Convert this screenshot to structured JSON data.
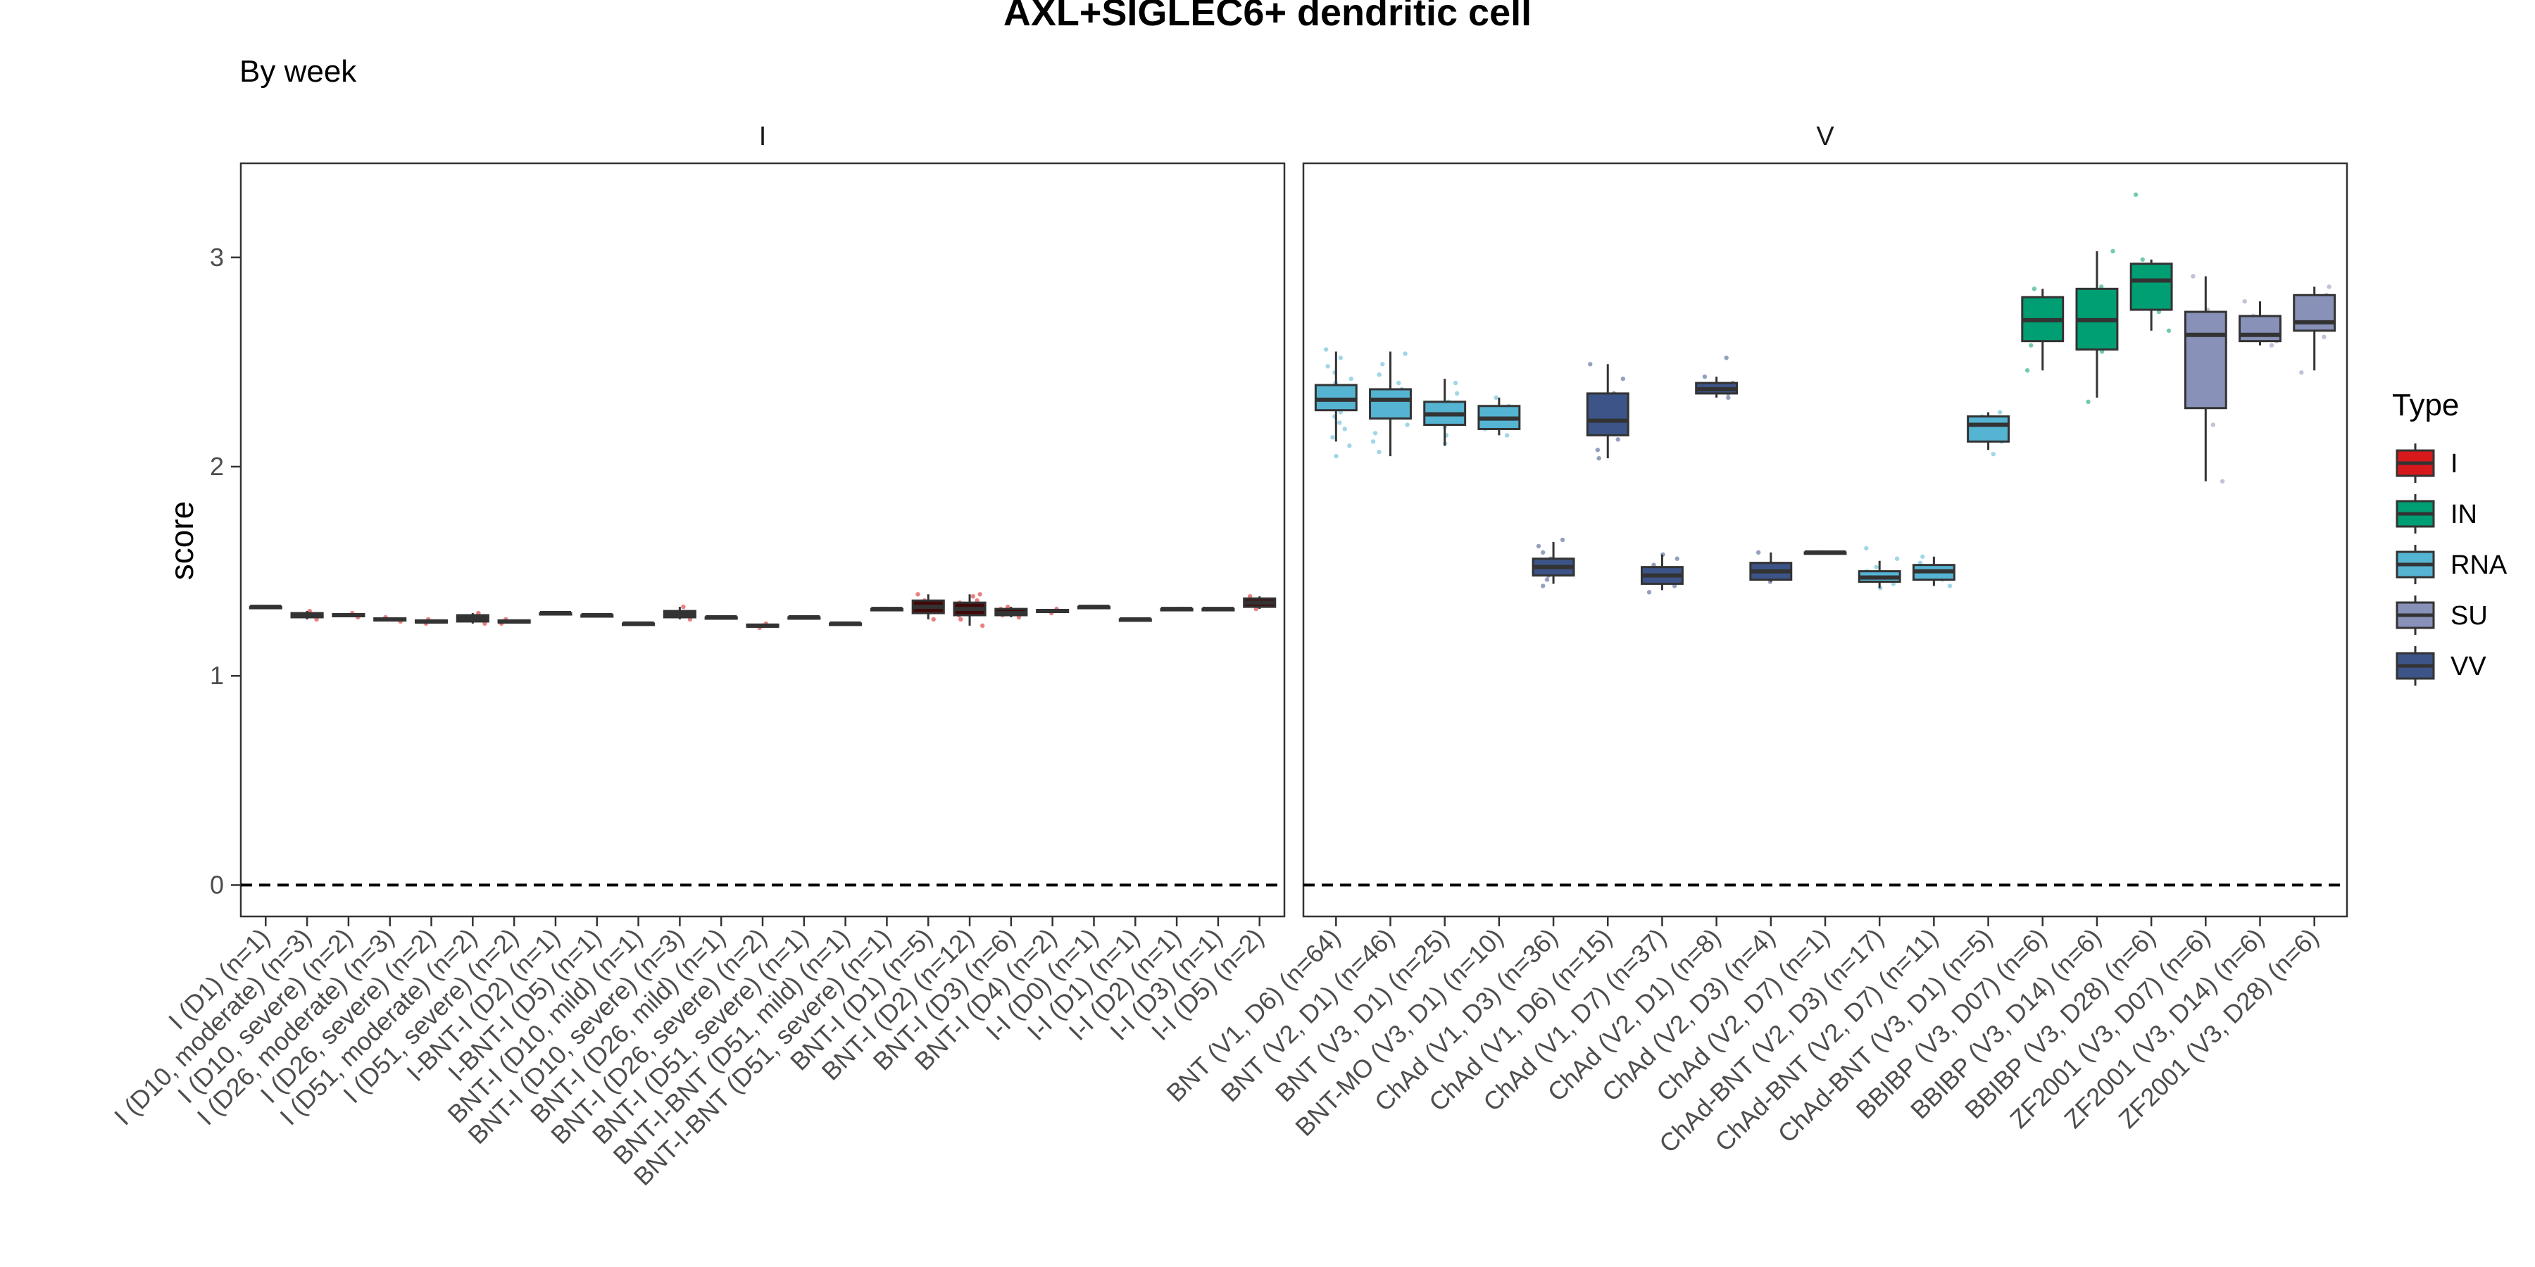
{
  "chart_data": {
    "type": "boxplot",
    "title": "AXL+SIGLEC6+ dendritic cell",
    "subtitle": "By week",
    "ylabel": "score",
    "xlabel": "",
    "ylim": [
      -0.15,
      3.45
    ],
    "yticks": [
      0,
      1,
      2,
      3
    ],
    "reference_line": 0,
    "grid": false,
    "legend": {
      "title": "Type",
      "position": "right",
      "entries": [
        {
          "name": "I",
          "color": "#d7191c"
        },
        {
          "name": "IN",
          "color": "#009e73"
        },
        {
          "name": "RNA",
          "color": "#56b4d3"
        },
        {
          "name": "SU",
          "color": "#8891b8"
        },
        {
          "name": "VV",
          "color": "#3c5488"
        }
      ]
    },
    "panels": [
      {
        "strip": "I",
        "boxes": [
          {
            "label": "I (D1) (n=1)",
            "type": "I",
            "min": 1.33,
            "q1": 1.33,
            "median": 1.33,
            "q3": 1.33,
            "max": 1.33,
            "points": [
              1.33
            ]
          },
          {
            "label": "I (D10, moderate) (n=3)",
            "type": "I",
            "min": 1.27,
            "q1": 1.28,
            "median": 1.29,
            "q3": 1.3,
            "max": 1.31,
            "points": [
              1.27,
              1.29,
              1.31
            ]
          },
          {
            "label": "I (D10, severe) (n=2)",
            "type": "I",
            "min": 1.28,
            "q1": 1.285,
            "median": 1.29,
            "q3": 1.295,
            "max": 1.3,
            "points": [
              1.28,
              1.3
            ]
          },
          {
            "label": "I (D26, moderate) (n=3)",
            "type": "I",
            "min": 1.26,
            "q1": 1.265,
            "median": 1.27,
            "q3": 1.275,
            "max": 1.28,
            "points": [
              1.26,
              1.27,
              1.28
            ]
          },
          {
            "label": "I (D26, severe) (n=2)",
            "type": "I",
            "min": 1.25,
            "q1": 1.255,
            "median": 1.26,
            "q3": 1.265,
            "max": 1.27,
            "points": [
              1.25,
              1.27
            ]
          },
          {
            "label": "I (D51, moderate) (n=2)",
            "type": "I",
            "min": 1.25,
            "q1": 1.26,
            "median": 1.275,
            "q3": 1.29,
            "max": 1.3,
            "points": [
              1.25,
              1.3
            ]
          },
          {
            "label": "I (D51, severe) (n=2)",
            "type": "I",
            "min": 1.25,
            "q1": 1.255,
            "median": 1.26,
            "q3": 1.265,
            "max": 1.27,
            "points": [
              1.25,
              1.27
            ]
          },
          {
            "label": "I-BNT-I (D2) (n=1)",
            "type": "I",
            "min": 1.3,
            "q1": 1.3,
            "median": 1.3,
            "q3": 1.3,
            "max": 1.3,
            "points": [
              1.3
            ]
          },
          {
            "label": "I-BNT-I (D5) (n=1)",
            "type": "I",
            "min": 1.29,
            "q1": 1.29,
            "median": 1.29,
            "q3": 1.29,
            "max": 1.29,
            "points": [
              1.29
            ]
          },
          {
            "label": "BNT-I (D10, mild) (n=1)",
            "type": "I",
            "min": 1.25,
            "q1": 1.25,
            "median": 1.25,
            "q3": 1.25,
            "max": 1.25,
            "points": [
              1.25
            ]
          },
          {
            "label": "BNT-I (D10, severe) (n=3)",
            "type": "I",
            "min": 1.27,
            "q1": 1.28,
            "median": 1.295,
            "q3": 1.31,
            "max": 1.33,
            "points": [
              1.27,
              1.3,
              1.33
            ]
          },
          {
            "label": "BNT-I (D26, mild) (n=1)",
            "type": "I",
            "min": 1.28,
            "q1": 1.28,
            "median": 1.28,
            "q3": 1.28,
            "max": 1.28,
            "points": [
              1.28
            ]
          },
          {
            "label": "BNT-I (D26, severe) (n=2)",
            "type": "I",
            "min": 1.23,
            "q1": 1.235,
            "median": 1.24,
            "q3": 1.245,
            "max": 1.25,
            "points": [
              1.23,
              1.25
            ]
          },
          {
            "label": "BNT-I (D51, severe) (n=1)",
            "type": "I",
            "min": 1.28,
            "q1": 1.28,
            "median": 1.28,
            "q3": 1.28,
            "max": 1.28,
            "points": [
              1.28
            ]
          },
          {
            "label": "BNT-I-BNT (D51, mild) (n=1)",
            "type": "I",
            "min": 1.25,
            "q1": 1.25,
            "median": 1.25,
            "q3": 1.25,
            "max": 1.25,
            "points": [
              1.25
            ]
          },
          {
            "label": "BNT-I-BNT (D51, severe) (n=1)",
            "type": "I",
            "min": 1.32,
            "q1": 1.32,
            "median": 1.32,
            "q3": 1.32,
            "max": 1.32,
            "points": [
              1.32
            ]
          },
          {
            "label": "BNT-I (D1) (n=5)",
            "type": "I",
            "min": 1.27,
            "q1": 1.3,
            "median": 1.33,
            "q3": 1.36,
            "max": 1.39,
            "points": [
              1.27,
              1.31,
              1.33,
              1.36,
              1.39
            ]
          },
          {
            "label": "BNT-I (D2) (n=12)",
            "type": "I",
            "min": 1.24,
            "q1": 1.29,
            "median": 1.32,
            "q3": 1.35,
            "max": 1.39,
            "points": [
              1.24,
              1.27,
              1.29,
              1.3,
              1.31,
              1.32,
              1.33,
              1.34,
              1.35,
              1.36,
              1.38,
              1.39
            ]
          },
          {
            "label": "BNT-I (D3) (n=6)",
            "type": "I",
            "min": 1.28,
            "q1": 1.29,
            "median": 1.3,
            "q3": 1.32,
            "max": 1.33,
            "points": [
              1.28,
              1.29,
              1.3,
              1.31,
              1.32,
              1.33
            ]
          },
          {
            "label": "BNT-I (D4) (n=2)",
            "type": "I",
            "min": 1.3,
            "q1": 1.305,
            "median": 1.31,
            "q3": 1.315,
            "max": 1.32,
            "points": [
              1.3,
              1.32
            ]
          },
          {
            "label": "I-I (D0) (n=1)",
            "type": "I",
            "min": 1.33,
            "q1": 1.33,
            "median": 1.33,
            "q3": 1.33,
            "max": 1.33,
            "points": [
              1.33
            ]
          },
          {
            "label": "I-I (D1) (n=1)",
            "type": "I",
            "min": 1.27,
            "q1": 1.27,
            "median": 1.27,
            "q3": 1.27,
            "max": 1.27,
            "points": [
              1.27
            ]
          },
          {
            "label": "I-I (D2) (n=1)",
            "type": "I",
            "min": 1.32,
            "q1": 1.32,
            "median": 1.32,
            "q3": 1.32,
            "max": 1.32,
            "points": [
              1.32
            ]
          },
          {
            "label": "I-I (D3) (n=1)",
            "type": "I",
            "min": 1.32,
            "q1": 1.32,
            "median": 1.32,
            "q3": 1.32,
            "max": 1.32,
            "points": [
              1.32
            ]
          },
          {
            "label": "I-I (D5) (n=2)",
            "type": "I",
            "min": 1.32,
            "q1": 1.33,
            "median": 1.35,
            "q3": 1.37,
            "max": 1.38,
            "points": [
              1.32,
              1.38
            ]
          }
        ]
      },
      {
        "strip": "V",
        "boxes": [
          {
            "label": "BNT (V1, D6) (n=64)",
            "type": "RNA",
            "min": 2.12,
            "q1": 2.27,
            "median": 2.32,
            "q3": 2.39,
            "max": 2.55,
            "points": [
              2.05,
              2.1,
              2.14,
              2.18,
              2.21,
              2.24,
              2.26,
              2.28,
              2.29,
              2.3,
              2.31,
              2.32,
              2.33,
              2.34,
              2.35,
              2.36,
              2.38,
              2.4,
              2.42,
              2.45,
              2.48,
              2.52,
              2.56
            ]
          },
          {
            "label": "BNT (V2, D1) (n=46)",
            "type": "RNA",
            "min": 2.05,
            "q1": 2.23,
            "median": 2.32,
            "q3": 2.37,
            "max": 2.55,
            "points": [
              2.07,
              2.12,
              2.16,
              2.2,
              2.24,
              2.27,
              2.29,
              2.31,
              2.33,
              2.35,
              2.37,
              2.4,
              2.44,
              2.49,
              2.54
            ]
          },
          {
            "label": "BNT (V3, D1) (n=25)",
            "type": "RNA",
            "min": 2.1,
            "q1": 2.2,
            "median": 2.25,
            "q3": 2.31,
            "max": 2.42,
            "points": [
              2.11,
              2.15,
              2.19,
              2.22,
              2.24,
              2.26,
              2.28,
              2.31,
              2.35,
              2.4
            ]
          },
          {
            "label": "BNT-MO (V3, D1) (n=10)",
            "type": "RNA",
            "min": 2.15,
            "q1": 2.18,
            "median": 2.23,
            "q3": 2.29,
            "max": 2.33,
            "points": [
              2.15,
              2.18,
              2.21,
              2.23,
              2.25,
              2.27,
              2.29,
              2.33
            ]
          },
          {
            "label": "ChAd (V1, D3) (n=36)",
            "type": "VV",
            "min": 1.44,
            "q1": 1.48,
            "median": 1.52,
            "q3": 1.56,
            "max": 1.64,
            "points": [
              1.43,
              1.46,
              1.48,
              1.5,
              1.52,
              1.54,
              1.56,
              1.59,
              1.62,
              1.65
            ]
          },
          {
            "label": "ChAd (V1, D6) (n=15)",
            "type": "VV",
            "min": 2.04,
            "q1": 2.15,
            "median": 2.22,
            "q3": 2.35,
            "max": 2.49,
            "points": [
              2.04,
              2.08,
              2.13,
              2.17,
              2.22,
              2.28,
              2.35,
              2.42,
              2.49
            ]
          },
          {
            "label": "ChAd (V1, D7) (n=37)",
            "type": "VV",
            "min": 1.41,
            "q1": 1.44,
            "median": 1.48,
            "q3": 1.52,
            "max": 1.58,
            "points": [
              1.4,
              1.43,
              1.45,
              1.47,
              1.49,
              1.51,
              1.53,
              1.56,
              1.58
            ]
          },
          {
            "label": "ChAd (V2, D1) (n=8)",
            "type": "VV",
            "min": 2.33,
            "q1": 2.35,
            "median": 2.37,
            "q3": 2.4,
            "max": 2.43,
            "points": [
              2.33,
              2.35,
              2.37,
              2.38,
              2.4,
              2.43,
              2.52
            ]
          },
          {
            "label": "ChAd (V2, D3) (n=4)",
            "type": "VV",
            "min": 1.45,
            "q1": 1.46,
            "median": 1.5,
            "q3": 1.54,
            "max": 1.59,
            "points": [
              1.45,
              1.48,
              1.53,
              1.59
            ]
          },
          {
            "label": "ChAd (V2, D7) (n=1)",
            "type": "VV",
            "min": 1.59,
            "q1": 1.59,
            "median": 1.59,
            "q3": 1.59,
            "max": 1.59,
            "points": [
              1.59
            ]
          },
          {
            "label": "ChAd-BNT (V2, D3) (n=17)",
            "type": "RNA",
            "min": 1.42,
            "q1": 1.45,
            "median": 1.47,
            "q3": 1.5,
            "max": 1.55,
            "points": [
              1.42,
              1.44,
              1.46,
              1.47,
              1.48,
              1.5,
              1.52,
              1.56,
              1.61
            ]
          },
          {
            "label": "ChAd-BNT (V2, D7) (n=11)",
            "type": "RNA",
            "min": 1.43,
            "q1": 1.46,
            "median": 1.5,
            "q3": 1.53,
            "max": 1.57,
            "points": [
              1.43,
              1.46,
              1.48,
              1.5,
              1.52,
              1.54,
              1.57
            ]
          },
          {
            "label": "ChAd-BNT (V3, D1) (n=5)",
            "type": "RNA",
            "min": 2.08,
            "q1": 2.12,
            "median": 2.2,
            "q3": 2.24,
            "max": 2.26,
            "points": [
              2.06,
              2.12,
              2.2,
              2.24,
              2.26
            ]
          },
          {
            "label": "BBIBP (V3, D07) (n=6)",
            "type": "IN",
            "min": 2.46,
            "q1": 2.6,
            "median": 2.7,
            "q3": 2.81,
            "max": 2.85,
            "points": [
              2.46,
              2.58,
              2.66,
              2.73,
              2.8,
              2.85
            ]
          },
          {
            "label": "BBIBP (V3, D14) (n=6)",
            "type": "IN",
            "min": 2.33,
            "q1": 2.56,
            "median": 2.7,
            "q3": 2.85,
            "max": 3.03,
            "points": [
              2.31,
              2.55,
              2.66,
              2.74,
              2.86,
              3.03
            ]
          },
          {
            "label": "BBIBP (V3, D28) (n=6)",
            "type": "IN",
            "min": 2.65,
            "q1": 2.75,
            "median": 2.89,
            "q3": 2.97,
            "max": 2.99,
            "points": [
              2.65,
              2.74,
              2.86,
              2.93,
              2.99,
              3.3
            ]
          },
          {
            "label": "ZF2001 (V3, D07) (n=6)",
            "type": "SU",
            "min": 1.93,
            "q1": 2.28,
            "median": 2.63,
            "q3": 2.74,
            "max": 2.91,
            "points": [
              1.93,
              2.2,
              2.55,
              2.68,
              2.75,
              2.91
            ]
          },
          {
            "label": "ZF2001 (V3, D14) (n=6)",
            "type": "SU",
            "min": 2.58,
            "q1": 2.6,
            "median": 2.63,
            "q3": 2.72,
            "max": 2.79,
            "points": [
              2.58,
              2.6,
              2.62,
              2.65,
              2.72,
              2.79
            ]
          },
          {
            "label": "ZF2001 (V3, D28) (n=6)",
            "type": "SU",
            "min": 2.46,
            "q1": 2.65,
            "median": 2.69,
            "q3": 2.82,
            "max": 2.86,
            "points": [
              2.45,
              2.62,
              2.68,
              2.72,
              2.82,
              2.86
            ]
          }
        ]
      }
    ]
  }
}
